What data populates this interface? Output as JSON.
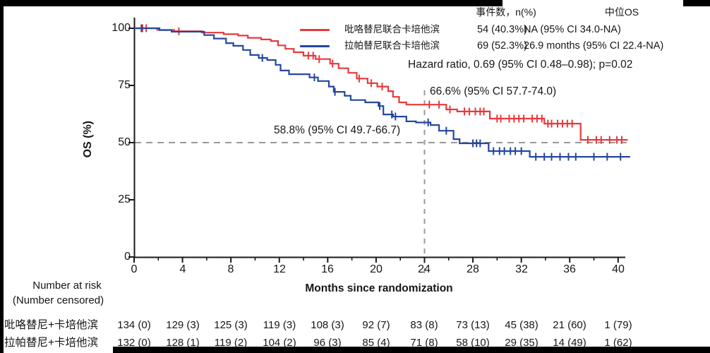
{
  "legend": {
    "col_event_header": "事件数，n(%)",
    "col_os_header": "中位OS",
    "series": [
      {
        "label": "吡咯替尼联合卡培他滨",
        "events": "54 (40.3%)",
        "median_os": "NA (95% CI 34.0-NA)",
        "color": "#e8393b"
      },
      {
        "label": "拉帕替尼联合卡培他滨",
        "events": "69 (52.3%)",
        "median_os": "26.9 months (95% CI 22.4-NA)",
        "color": "#24479f"
      }
    ],
    "hazard_ratio": "Hazard ratio, 0.69 (95% CI 0.48–0.98); p=0.02"
  },
  "annotations": {
    "red_landmark": "66.6% (95% CI 57.7-74.0)",
    "blue_landmark": "58.8% (95% CI 49.7-66.7)"
  },
  "chart_data": {
    "type": "line",
    "subtype": "kaplan-meier-step",
    "title": "",
    "xlabel": "Months since randomization",
    "ylabel": "OS (%)",
    "xlim": [
      0,
      41.5
    ],
    "ylim": [
      0,
      100
    ],
    "x_major_ticks": [
      0,
      4,
      8,
      12,
      16,
      20,
      24,
      28,
      32,
      36,
      40
    ],
    "x_minor_ticks": [
      2,
      6,
      10,
      14,
      18,
      22,
      26,
      30,
      34,
      38
    ],
    "y_ticks": [
      0,
      25,
      50,
      75,
      100
    ],
    "grid": false,
    "reference_lines": {
      "horizontal_y": 50,
      "vertical_x": 24
    },
    "landmark": {
      "month": 24,
      "red_value": 66.6,
      "blue_value": 58.8
    },
    "axis_color": "#1a1a1a",
    "dash_color": "#999999",
    "series": [
      {
        "name": "吡咯替尼联合卡培他滨",
        "color": "#e8393b",
        "steps": [
          [
            0,
            100
          ],
          [
            1.9,
            100
          ],
          [
            1.9,
            99.3
          ],
          [
            3.3,
            99.3
          ],
          [
            3.3,
            98.7
          ],
          [
            5.6,
            98.7
          ],
          [
            5.6,
            98.1
          ],
          [
            7.4,
            98.1
          ],
          [
            7.4,
            97.4
          ],
          [
            8.6,
            97.4
          ],
          [
            8.6,
            96.8
          ],
          [
            9.4,
            96.8
          ],
          [
            9.4,
            95.8
          ],
          [
            10.5,
            95.8
          ],
          [
            10.5,
            95.1
          ],
          [
            11.3,
            95.1
          ],
          [
            11.3,
            94.4
          ],
          [
            11.9,
            94.4
          ],
          [
            11.9,
            92.5
          ],
          [
            12.5,
            92.5
          ],
          [
            12.5,
            91
          ],
          [
            13.2,
            91
          ],
          [
            13.2,
            89.5
          ],
          [
            14,
            89.5
          ],
          [
            14,
            88
          ],
          [
            15,
            88
          ],
          [
            15,
            86.5
          ],
          [
            16.2,
            86.5
          ],
          [
            16.2,
            84.5
          ],
          [
            16.9,
            84.5
          ],
          [
            16.9,
            82.5
          ],
          [
            17.7,
            82.5
          ],
          [
            17.7,
            80.5
          ],
          [
            18.4,
            80.5
          ],
          [
            18.4,
            78
          ],
          [
            19.3,
            78
          ],
          [
            19.3,
            76
          ],
          [
            20.1,
            76
          ],
          [
            20.1,
            74.5
          ],
          [
            21,
            74.5
          ],
          [
            21,
            72.5
          ],
          [
            21.4,
            72.5
          ],
          [
            21.4,
            70
          ],
          [
            21.9,
            70
          ],
          [
            21.9,
            67.6
          ],
          [
            22.5,
            67.6
          ],
          [
            22.5,
            66.6
          ],
          [
            25.8,
            66.6
          ],
          [
            25.8,
            64.5
          ],
          [
            26.7,
            64.5
          ],
          [
            26.7,
            63.6
          ],
          [
            29.4,
            63.6
          ],
          [
            29.4,
            60.5
          ],
          [
            33.9,
            60.5
          ],
          [
            33.9,
            58.3
          ],
          [
            36.9,
            58.3
          ],
          [
            36.9,
            51.2
          ],
          [
            40.8,
            51.2
          ]
        ],
        "censor_months": [
          0.7,
          1.0,
          3.7,
          14.4,
          14.8,
          15.3,
          16.4,
          18.6,
          19.6,
          20.5,
          24.4,
          25.2,
          26.1,
          27.3,
          27.7,
          28.2,
          28.6,
          28.9,
          30.0,
          30.3,
          31.0,
          31.4,
          31.8,
          32.2,
          32.9,
          33.3,
          33.7,
          34.2,
          34.5,
          35.0,
          35.4,
          35.8,
          36.2,
          37.5,
          38.2,
          38.6,
          39.3,
          39.9,
          40.3
        ]
      },
      {
        "name": "拉帕替尼联合卡培他滨",
        "color": "#24479f",
        "steps": [
          [
            0,
            100
          ],
          [
            2.1,
            100
          ],
          [
            2.1,
            99.2
          ],
          [
            3.1,
            99.2
          ],
          [
            3.1,
            98.5
          ],
          [
            5.8,
            98.5
          ],
          [
            5.8,
            97
          ],
          [
            6.6,
            97
          ],
          [
            6.6,
            95.5
          ],
          [
            7.6,
            95.5
          ],
          [
            7.6,
            93.5
          ],
          [
            8.2,
            93.5
          ],
          [
            8.2,
            92.3
          ],
          [
            9,
            92.3
          ],
          [
            9,
            90.5
          ],
          [
            9.6,
            90.5
          ],
          [
            9.6,
            88.3
          ],
          [
            10.3,
            88.3
          ],
          [
            10.3,
            87
          ],
          [
            11,
            87
          ],
          [
            11,
            86.1
          ],
          [
            11.7,
            86.1
          ],
          [
            11.7,
            84
          ],
          [
            12.1,
            84
          ],
          [
            12.1,
            81.5
          ],
          [
            12.8,
            81.5
          ],
          [
            12.8,
            79.9
          ],
          [
            14.5,
            79.9
          ],
          [
            14.5,
            78.5
          ],
          [
            15.2,
            78.5
          ],
          [
            15.2,
            76.9
          ],
          [
            16.1,
            76.9
          ],
          [
            16.1,
            74.5
          ],
          [
            16.5,
            74.5
          ],
          [
            16.5,
            72.2
          ],
          [
            17.4,
            72.2
          ],
          [
            17.4,
            70.5
          ],
          [
            17.9,
            70.5
          ],
          [
            17.9,
            68.6
          ],
          [
            19.1,
            68.6
          ],
          [
            19.1,
            67.6
          ],
          [
            20.2,
            67.6
          ],
          [
            20.2,
            66
          ],
          [
            20.6,
            66
          ],
          [
            20.6,
            62.3
          ],
          [
            21.4,
            62.3
          ],
          [
            21.4,
            61.4
          ],
          [
            22.5,
            61.4
          ],
          [
            22.5,
            59.3
          ],
          [
            23.3,
            59.3
          ],
          [
            23.3,
            58.8
          ],
          [
            24.5,
            58.8
          ],
          [
            24.5,
            57.7
          ],
          [
            25.2,
            57.7
          ],
          [
            25.2,
            55.2
          ],
          [
            26.4,
            55.2
          ],
          [
            26.4,
            51.5
          ],
          [
            26.9,
            51.5
          ],
          [
            26.9,
            49.7
          ],
          [
            29.3,
            49.7
          ],
          [
            29.3,
            46.3
          ],
          [
            32.7,
            46.3
          ],
          [
            32.7,
            43.8
          ],
          [
            41.0,
            43.8
          ]
        ],
        "censor_months": [
          0.6,
          10.6,
          14.9,
          16.6,
          20.3,
          21.3,
          21.6,
          24.3,
          25.8,
          28.0,
          28.3,
          28.6,
          29.7,
          30.2,
          30.6,
          31.1,
          31.5,
          32.0,
          33.2,
          33.9,
          34.5,
          35.2,
          35.9,
          36.5,
          38.0,
          39.1,
          40.2
        ]
      }
    ]
  },
  "risk_table": {
    "header_line1": "Number at risk",
    "header_line2": "(Number censored)",
    "months": [
      0,
      4,
      8,
      12,
      16,
      20,
      24,
      28,
      32,
      36,
      40
    ],
    "rows": [
      {
        "label": "吡咯替尼+卡培他滨",
        "values": [
          "134 (0)",
          "129 (3)",
          "125 (3)",
          "119 (3)",
          "108 (3)",
          "92 (7)",
          "83 (8)",
          "73 (13)",
          "45 (38)",
          "21 (60)",
          "1 (79)"
        ]
      },
      {
        "label": "拉帕替尼+卡培他滨",
        "values": [
          "132 (0)",
          "128 (1)",
          "119 (2)",
          "104 (2)",
          "96 (3)",
          "85 (4)",
          "71 (8)",
          "58 (10)",
          "29 (35)",
          "14 (49)",
          "1 (62)"
        ]
      }
    ]
  }
}
